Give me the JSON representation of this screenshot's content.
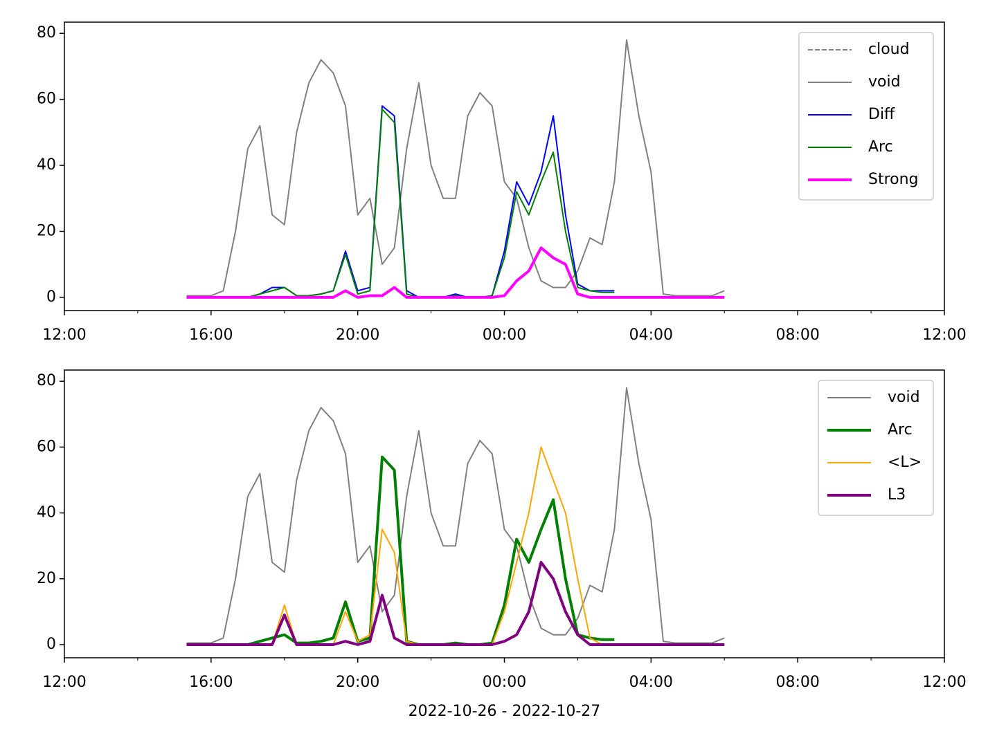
{
  "chart_data": [
    {
      "type": "line",
      "legend": "upper right",
      "x": [
        "2022-10-26 15:20",
        "2022-10-26 15:40",
        "2022-10-26 16:00",
        "2022-10-26 16:20",
        "2022-10-26 16:40",
        "2022-10-26 17:00",
        "2022-10-26 17:20",
        "2022-10-26 17:40",
        "2022-10-26 18:00",
        "2022-10-26 18:20",
        "2022-10-26 18:40",
        "2022-10-26 19:00",
        "2022-10-26 19:20",
        "2022-10-26 19:40",
        "2022-10-26 20:00",
        "2022-10-26 20:20",
        "2022-10-26 20:40",
        "2022-10-26 21:00",
        "2022-10-26 21:20",
        "2022-10-26 21:40",
        "2022-10-26 22:00",
        "2022-10-26 22:20",
        "2022-10-26 22:40",
        "2022-10-26 23:00",
        "2022-10-26 23:20",
        "2022-10-26 23:40",
        "2022-10-27 00:00",
        "2022-10-27 00:20",
        "2022-10-27 00:40",
        "2022-10-27 01:00",
        "2022-10-27 01:20",
        "2022-10-27 01:40",
        "2022-10-27 02:00",
        "2022-10-27 02:20",
        "2022-10-27 02:40",
        "2022-10-27 03:00",
        "2022-10-27 03:20",
        "2022-10-27 03:40",
        "2022-10-27 04:00",
        "2022-10-27 04:20",
        "2022-10-27 04:40",
        "2022-10-27 05:00",
        "2022-10-27 05:20",
        "2022-10-27 05:40",
        "2022-10-27 06:00"
      ],
      "series": [
        {
          "name": "cloud",
          "color": "#808080",
          "linestyle": "dashed",
          "linewidth": 1,
          "values": [
            null,
            null,
            null,
            null,
            null,
            null,
            null,
            null,
            null,
            null,
            null,
            null,
            null,
            null,
            null,
            null,
            null,
            null,
            null,
            null,
            null,
            null,
            null,
            null,
            null,
            null,
            null,
            null,
            null,
            null,
            null,
            null,
            null,
            null,
            null,
            null,
            null,
            null,
            null,
            null,
            null,
            null,
            null,
            null,
            null
          ]
        },
        {
          "name": "void",
          "color": "#808080",
          "linestyle": "solid",
          "linewidth": 1,
          "values": [
            0.5,
            0.5,
            0.5,
            2,
            20,
            45,
            52,
            25,
            22,
            50,
            65,
            72,
            68,
            58,
            25,
            30,
            10,
            15,
            45,
            65,
            40,
            30,
            30,
            55,
            62,
            58,
            35,
            30,
            15,
            5,
            3,
            3,
            8,
            18,
            16,
            35,
            78,
            55,
            38,
            1,
            0.5,
            0.5,
            0.5,
            0.5,
            2
          ]
        },
        {
          "name": "Diff",
          "color": "#0000ff",
          "linestyle": "solid",
          "linewidth": 1,
          "values": [
            null,
            null,
            null,
            null,
            null,
            0,
            1,
            3,
            3,
            0.5,
            0.5,
            1,
            2,
            14,
            2,
            3,
            58,
            55,
            2,
            0,
            0,
            0,
            1,
            0,
            0,
            0.5,
            14,
            35,
            28,
            38,
            55,
            25,
            4,
            2,
            2,
            2,
            null,
            null,
            null,
            null,
            null,
            null,
            null,
            null,
            null
          ]
        },
        {
          "name": "Arc",
          "color": "#008000",
          "linestyle": "solid",
          "linewidth": 1,
          "values": [
            null,
            null,
            null,
            null,
            null,
            0,
            1,
            2,
            3,
            0.5,
            0.5,
            1,
            2,
            13,
            1,
            2,
            57,
            53,
            1,
            0,
            0,
            0,
            0.5,
            0,
            0,
            0.5,
            12,
            32,
            25,
            35,
            44,
            20,
            3,
            2,
            1.5,
            1.5,
            null,
            null,
            null,
            null,
            null,
            null,
            null,
            null,
            null
          ]
        },
        {
          "name": "Strong",
          "color": "#ff00ff",
          "linestyle": "solid",
          "linewidth": 2,
          "values": [
            0,
            0,
            0,
            0,
            0,
            0,
            0,
            0,
            0,
            0,
            0,
            0,
            0,
            2,
            0,
            0.5,
            0.5,
            3,
            0,
            0,
            0,
            0,
            0,
            0,
            0,
            0,
            0.5,
            5,
            8,
            15,
            12,
            10,
            1,
            0,
            0,
            0,
            0,
            0,
            0,
            0,
            0,
            0,
            0,
            0,
            0
          ]
        }
      ],
      "xlim": [
        "2022-10-26 12:00",
        "2022-10-27 12:00"
      ],
      "xticks": [
        {
          "value": "2022-10-26 12:00",
          "label": "12:00"
        },
        {
          "value": "2022-10-26 16:00",
          "label": "16:00"
        },
        {
          "value": "2022-10-26 20:00",
          "label": "20:00"
        },
        {
          "value": "2022-10-27 00:00",
          "label": "00:00"
        },
        {
          "value": "2022-10-27 04:00",
          "label": "04:00"
        },
        {
          "value": "2022-10-27 08:00",
          "label": "08:00"
        },
        {
          "value": "2022-10-27 12:00",
          "label": "12:00"
        }
      ],
      "xminorticks": [
        "2022-10-26 14:00",
        "2022-10-26 18:00",
        "2022-10-26 22:00",
        "2022-10-27 02:00",
        "2022-10-27 06:00",
        "2022-10-27 10:00"
      ],
      "ylim": [
        -4,
        83.4
      ],
      "yticks": [
        0,
        20,
        40,
        60,
        80
      ]
    },
    {
      "type": "line",
      "legend": "upper right",
      "x": [
        "2022-10-26 15:20",
        "2022-10-26 15:40",
        "2022-10-26 16:00",
        "2022-10-26 16:20",
        "2022-10-26 16:40",
        "2022-10-26 17:00",
        "2022-10-26 17:20",
        "2022-10-26 17:40",
        "2022-10-26 18:00",
        "2022-10-26 18:20",
        "2022-10-26 18:40",
        "2022-10-26 19:00",
        "2022-10-26 19:20",
        "2022-10-26 19:40",
        "2022-10-26 20:00",
        "2022-10-26 20:20",
        "2022-10-26 20:40",
        "2022-10-26 21:00",
        "2022-10-26 21:20",
        "2022-10-26 21:40",
        "2022-10-26 22:00",
        "2022-10-26 22:20",
        "2022-10-26 22:40",
        "2022-10-26 23:00",
        "2022-10-26 23:20",
        "2022-10-26 23:40",
        "2022-10-27 00:00",
        "2022-10-27 00:20",
        "2022-10-27 00:40",
        "2022-10-27 01:00",
        "2022-10-27 01:20",
        "2022-10-27 01:40",
        "2022-10-27 02:00",
        "2022-10-27 02:20",
        "2022-10-27 02:40",
        "2022-10-27 03:00",
        "2022-10-27 03:20",
        "2022-10-27 03:40",
        "2022-10-27 04:00",
        "2022-10-27 04:20",
        "2022-10-27 04:40",
        "2022-10-27 05:00",
        "2022-10-27 05:20",
        "2022-10-27 05:40",
        "2022-10-27 06:00"
      ],
      "series": [
        {
          "name": "void",
          "color": "#808080",
          "linestyle": "solid",
          "linewidth": 1,
          "values": [
            0.5,
            0.5,
            0.5,
            2,
            20,
            45,
            52,
            25,
            22,
            50,
            65,
            72,
            68,
            58,
            25,
            30,
            10,
            15,
            45,
            65,
            40,
            30,
            30,
            55,
            62,
            58,
            35,
            30,
            15,
            5,
            3,
            3,
            8,
            18,
            16,
            35,
            78,
            55,
            38,
            1,
            0.5,
            0.5,
            0.5,
            0.5,
            2
          ]
        },
        {
          "name": "Arc",
          "color": "#008000",
          "linestyle": "solid",
          "linewidth": 2,
          "values": [
            null,
            null,
            null,
            null,
            null,
            0,
            1,
            2,
            3,
            0.5,
            0.5,
            1,
            2,
            13,
            1,
            2,
            57,
            53,
            1,
            0,
            0,
            0,
            0.5,
            0,
            0,
            0.5,
            12,
            32,
            25,
            35,
            44,
            20,
            3,
            2,
            1.5,
            1.5,
            null,
            null,
            null,
            null,
            null,
            null,
            null,
            null,
            null
          ]
        },
        {
          "name": "<L>",
          "color": "#ffa500",
          "linestyle": "solid",
          "linewidth": 1,
          "values": [
            0,
            0,
            0,
            0,
            0,
            0,
            0,
            0,
            12,
            0,
            0,
            0,
            0,
            10,
            1,
            3,
            35,
            28,
            1,
            0,
            0,
            0,
            0,
            0,
            0,
            0,
            10,
            25,
            40,
            60,
            50,
            40,
            20,
            2,
            0,
            0,
            0,
            0,
            0,
            0,
            0,
            0,
            0,
            0,
            0
          ]
        },
        {
          "name": "L3",
          "color": "#800080",
          "linestyle": "solid",
          "linewidth": 2,
          "values": [
            0,
            0,
            0,
            0,
            0,
            0,
            0,
            0,
            9,
            0,
            0,
            0,
            0,
            1,
            0,
            1,
            15,
            2,
            0,
            0,
            0,
            0,
            0,
            0,
            0,
            0,
            1,
            3,
            10,
            25,
            20,
            10,
            3,
            0,
            0,
            0,
            0,
            0,
            0,
            0,
            0,
            0,
            0,
            0,
            0
          ]
        }
      ],
      "xlim": [
        "2022-10-26 12:00",
        "2022-10-27 12:00"
      ],
      "xticks": [
        {
          "value": "2022-10-26 12:00",
          "label": "12:00"
        },
        {
          "value": "2022-10-26 16:00",
          "label": "16:00"
        },
        {
          "value": "2022-10-26 20:00",
          "label": "20:00"
        },
        {
          "value": "2022-10-27 00:00",
          "label": "00:00"
        },
        {
          "value": "2022-10-27 04:00",
          "label": "04:00"
        },
        {
          "value": "2022-10-27 08:00",
          "label": "08:00"
        },
        {
          "value": "2022-10-27 12:00",
          "label": "12:00"
        }
      ],
      "xminorticks": [
        "2022-10-26 14:00",
        "2022-10-26 18:00",
        "2022-10-26 22:00",
        "2022-10-27 02:00",
        "2022-10-27 06:00",
        "2022-10-27 10:00"
      ],
      "ylim": [
        -4,
        83.4
      ],
      "yticks": [
        0,
        20,
        40,
        60,
        80
      ],
      "x_label": "2022-10-26 - 2022-10-27"
    }
  ]
}
